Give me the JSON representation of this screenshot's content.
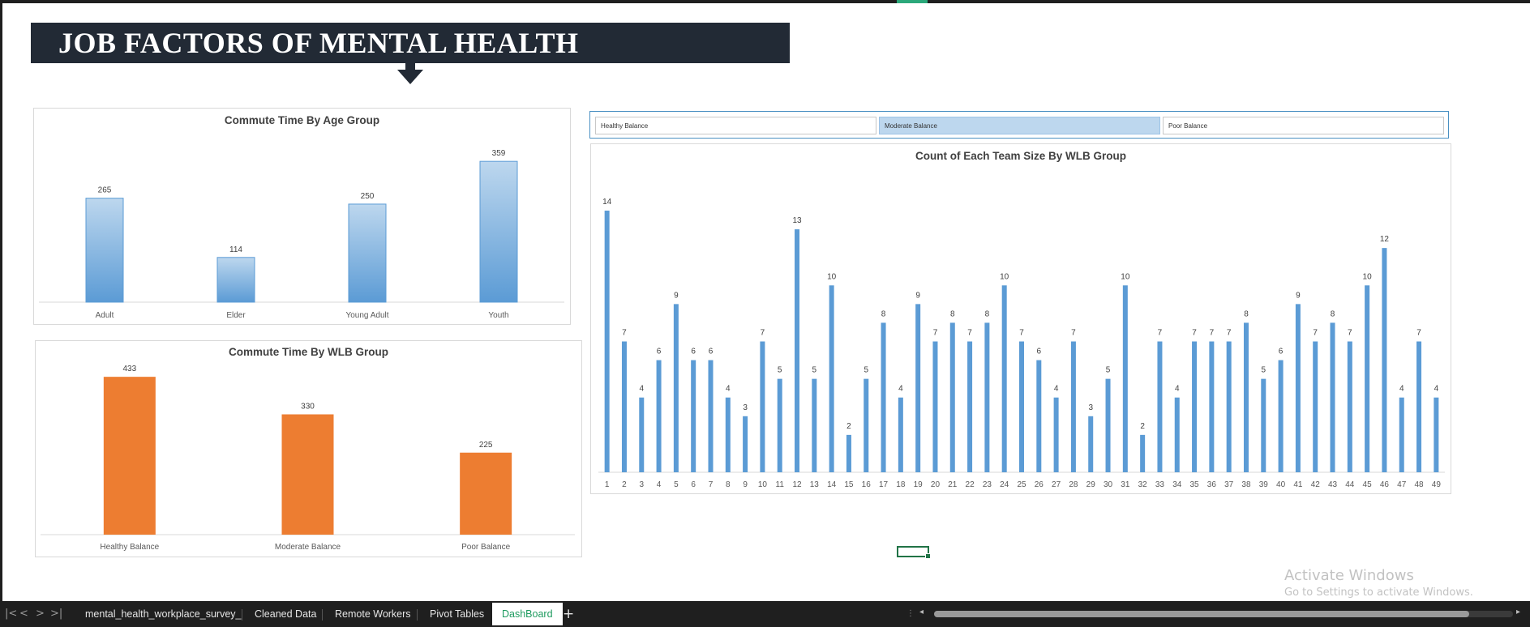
{
  "dashboard": {
    "title": "JOB FACTORS OF MENTAL HEALTH"
  },
  "colors": {
    "banner": "#222a35",
    "blue_top": "#bdd7ee",
    "blue_bottom": "#5b9bd5",
    "blue_bar": "#5b9bd5",
    "orange_bar": "#ed7d31",
    "slicer_selected": "#bdd7ee",
    "tab_active_text": "#1e9b5f"
  },
  "slicer": {
    "items": [
      {
        "label": "Healthy Balance",
        "selected": false
      },
      {
        "label": "Moderate Balance",
        "selected": true
      },
      {
        "label": "Poor Balance",
        "selected": false
      }
    ]
  },
  "chart_data": [
    {
      "id": "age",
      "type": "bar",
      "title": "Commute Time By Age Group",
      "categories": [
        "Adult",
        "Elder",
        "Young Adult",
        "Youth"
      ],
      "values": [
        265,
        114,
        250,
        359
      ],
      "ylim": [
        0,
        380
      ],
      "grid": false,
      "legend": "none",
      "fill": "gradient-blue"
    },
    {
      "id": "wlb",
      "type": "bar",
      "title": "Commute Time By WLB Group",
      "categories": [
        "Healthy Balance",
        "Moderate Balance",
        "Poor Balance"
      ],
      "values": [
        433,
        330,
        225
      ],
      "ylim": [
        0,
        440
      ],
      "grid": false,
      "legend": "none",
      "fill": "orange"
    },
    {
      "id": "team",
      "type": "bar",
      "title": "Count of Each Team Size By WLB Group",
      "categories": [
        "1",
        "2",
        "3",
        "4",
        "5",
        "6",
        "7",
        "8",
        "9",
        "10",
        "11",
        "12",
        "13",
        "14",
        "15",
        "16",
        "17",
        "18",
        "19",
        "20",
        "21",
        "22",
        "23",
        "24",
        "25",
        "26",
        "27",
        "28",
        "29",
        "30",
        "31",
        "32",
        "33",
        "34",
        "35",
        "36",
        "37",
        "38",
        "39",
        "40",
        "41",
        "42",
        "43",
        "44",
        "45",
        "46",
        "47",
        "48",
        "49"
      ],
      "values": [
        14,
        7,
        4,
        6,
        9,
        6,
        6,
        4,
        3,
        7,
        5,
        13,
        5,
        10,
        2,
        5,
        8,
        4,
        9,
        7,
        8,
        7,
        8,
        10,
        7,
        6,
        4,
        7,
        3,
        5,
        10,
        2,
        7,
        4,
        7,
        7,
        7,
        8,
        5,
        6,
        9,
        7,
        8,
        7,
        10,
        12,
        4,
        7,
        4
      ],
      "ylim": [
        0,
        14
      ],
      "grid": false,
      "legend": "none",
      "fill": "blue"
    }
  ],
  "cursor": {},
  "watermark": {
    "line1": "Activate Windows",
    "line2": "Go to Settings to activate Windows."
  },
  "tabs": {
    "nav": [
      "|<",
      "<",
      ">",
      ">|"
    ],
    "sheets": [
      {
        "label": "mental_health_workplace_survey_",
        "active": false
      },
      {
        "label": "Cleaned Data",
        "active": false
      },
      {
        "label": "Remote Workers",
        "active": false
      },
      {
        "label": "Pivot Tables",
        "active": false
      },
      {
        "label": "DashBoard",
        "active": true
      }
    ],
    "add": "+",
    "scroll_dots": "⋮"
  }
}
